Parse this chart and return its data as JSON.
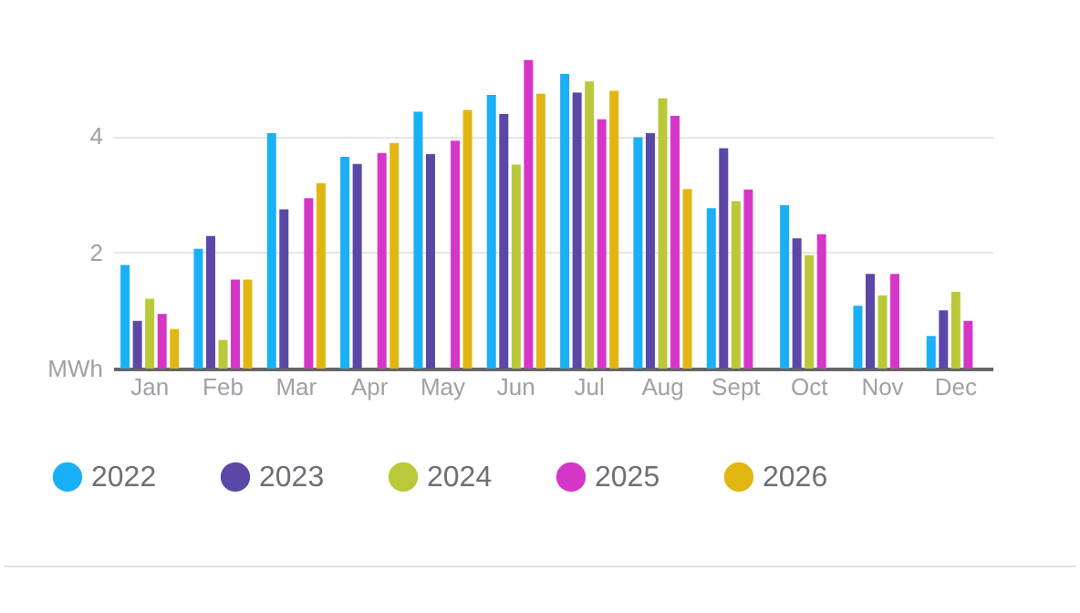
{
  "chart_data": {
    "type": "bar",
    "categories": [
      "Jan",
      "Feb",
      "Mar",
      "Apr",
      "May",
      "Jun",
      "Jul",
      "Aug",
      "Sept",
      "Oct",
      "Nov",
      "Dec"
    ],
    "series": [
      {
        "name": "2022",
        "color": "#1ab0f5",
        "values": [
          1.78,
          2.06,
          4.05,
          3.64,
          4.42,
          4.71,
          5.07,
          3.98,
          2.76,
          2.81,
          1.08,
          0.56
        ]
      },
      {
        "name": "2023",
        "color": "#5b47a8",
        "values": [
          0.82,
          2.28,
          2.74,
          3.52,
          3.69,
          4.38,
          4.75,
          4.05,
          3.79,
          2.24,
          1.63,
          1.0
        ]
      },
      {
        "name": "2024",
        "color": "#b9c93a",
        "values": [
          1.2,
          0.49,
          null,
          null,
          null,
          3.51,
          4.94,
          4.65,
          2.88,
          1.95,
          1.26,
          1.32
        ]
      },
      {
        "name": "2025",
        "color": "#d636c8",
        "values": [
          0.94,
          1.53,
          2.93,
          3.71,
          3.92,
          5.31,
          4.29,
          4.35,
          3.08,
          2.31,
          1.63,
          0.82
        ]
      },
      {
        "name": "2026",
        "color": "#e2b612",
        "values": [
          0.68,
          1.53,
          3.19,
          3.88,
          4.45,
          4.73,
          4.78,
          3.09,
          null,
          null,
          null,
          null
        ]
      }
    ],
    "ylim": [
      0,
      5.4
    ],
    "yticks": [
      {
        "value": 0,
        "label": "MWh"
      },
      2,
      4
    ],
    "grid": "y",
    "legend": "bottom"
  }
}
